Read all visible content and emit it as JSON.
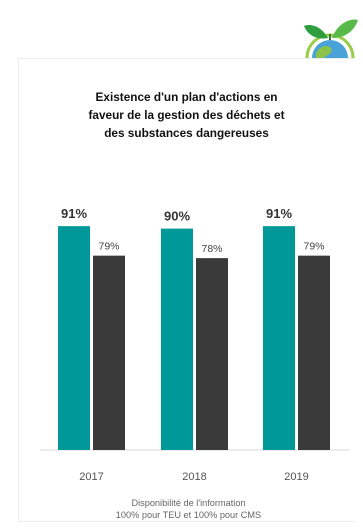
{
  "title": "Existence d'un plan d'actions en\nfaveur de la gestion des déchets et\ndes substances dangereuses",
  "footer": {
    "line1": "Disponibilité de l'information",
    "line2": "100% pour TEU et 100% pour CMS"
  },
  "colors": {
    "teal": "#009999",
    "dark": "#3a3a3a"
  },
  "icon": "globe-with-leaves-icon",
  "chart_data": {
    "type": "bar",
    "categories": [
      "2017",
      "2018",
      "2019"
    ],
    "series": [
      {
        "values": [
          91,
          90,
          91
        ],
        "labels": [
          "91%",
          "90%",
          "91%"
        ],
        "color": "#009999"
      },
      {
        "values": [
          79,
          78,
          79
        ],
        "labels": [
          "79%",
          "78%",
          "79%"
        ],
        "color": "#3a3a3a"
      }
    ],
    "ylim": [
      0,
      100
    ],
    "grid": false,
    "legend": "none"
  }
}
